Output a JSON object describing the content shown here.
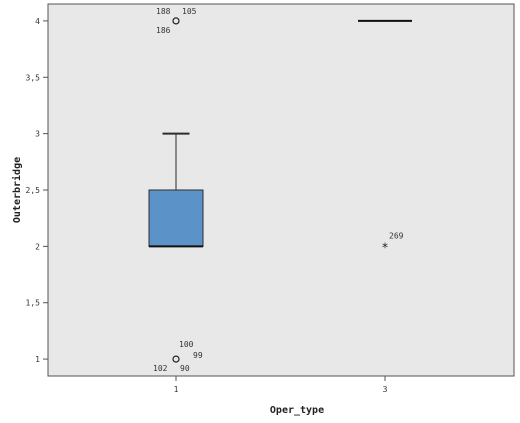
{
  "chart_data": {
    "type": "boxplot",
    "xlabel": "Oper_type",
    "ylabel": "Outerbridge",
    "ylim": [
      0.85,
      4.15
    ],
    "y_ticks": [
      {
        "value": 1,
        "label": "1"
      },
      {
        "value": 1.5,
        "label": "1,5"
      },
      {
        "value": 2,
        "label": "2"
      },
      {
        "value": 2.5,
        "label": "2,5"
      },
      {
        "value": 3,
        "label": "3"
      },
      {
        "value": 3.5,
        "label": "3,5"
      },
      {
        "value": 4,
        "label": "4"
      }
    ],
    "categories": [
      "1",
      "3"
    ],
    "boxes": [
      {
        "category": "1",
        "whisker_low": 2,
        "q1": 2,
        "median": 2,
        "q3": 2.5,
        "whisker_high": 3
      },
      {
        "category": "3",
        "whisker_low": 4,
        "q1": 4,
        "median": 4,
        "q3": 4,
        "whisker_high": 4
      }
    ],
    "outliers": [
      {
        "category": "1",
        "value": 4,
        "marker": "circle",
        "labels": [
          "188",
          "105",
          "186"
        ]
      },
      {
        "category": "1",
        "value": 1,
        "marker": "circle",
        "labels": [
          "100",
          "99",
          "102",
          "90"
        ]
      },
      {
        "category": "3",
        "value": 2,
        "marker": "star",
        "labels": [
          "269"
        ]
      }
    ],
    "colors": {
      "plot_background": "#e8e8e8",
      "box_fill": "#5b93c9",
      "box_stroke": "#2d2d2d"
    }
  }
}
